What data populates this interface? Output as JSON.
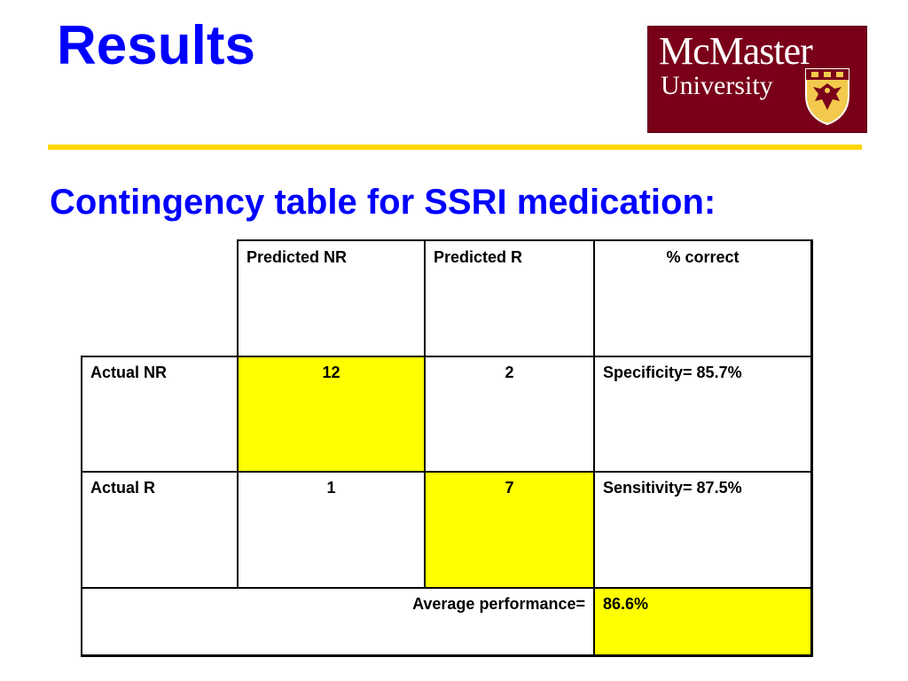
{
  "slide": {
    "title": "Results",
    "subtitle": "Contingency table for SSRI medication:"
  },
  "logo": {
    "line1": "McMaster",
    "line2": "University",
    "icon": "crest-shield-icon",
    "background": "#7a0019"
  },
  "colors": {
    "title": "#0000ff",
    "rule": "#ffd700",
    "highlight": "#ffff00"
  },
  "table": {
    "headers": [
      "Predicted NR",
      "Predicted R",
      "% correct"
    ],
    "rows": [
      {
        "label": "Actual NR",
        "predicted_nr": "12",
        "predicted_r": "2",
        "pct": "Specificity= 85.7%"
      },
      {
        "label": "Actual R",
        "predicted_nr": "1",
        "predicted_r": "7",
        "pct": "Sensitivity= 87.5%"
      }
    ],
    "footer": {
      "label": "Average performance=",
      "value": "86.6%"
    }
  }
}
